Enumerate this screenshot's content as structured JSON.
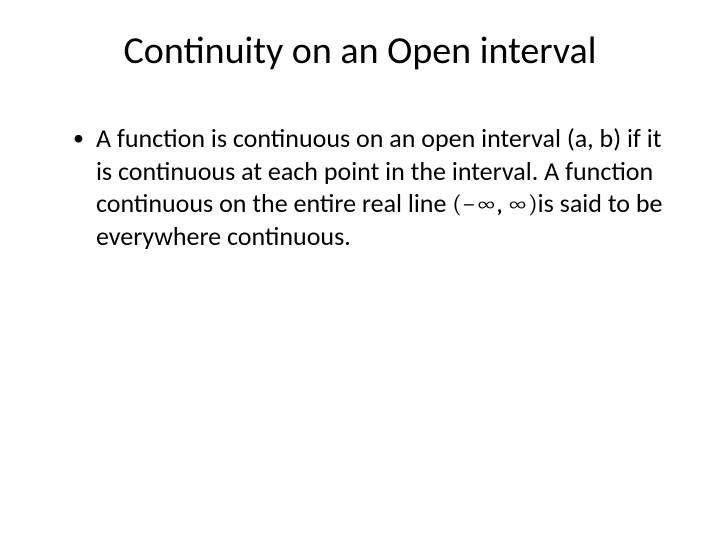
{
  "slide": {
    "title": "Continuity on an Open interval",
    "bullet": {
      "marker": "•",
      "text_part1": "A function is continuous on an open interval (a, b) if it is continuous at each point in the interval. A function continuous on the entire real line ",
      "math_interval": "(−∞, ∞)",
      "text_part2": "is said to be everywhere continuous."
    }
  },
  "style": {
    "background_color": "#ffffff",
    "text_color": "#000000",
    "title_fontsize": 38,
    "body_fontsize": 26
  }
}
